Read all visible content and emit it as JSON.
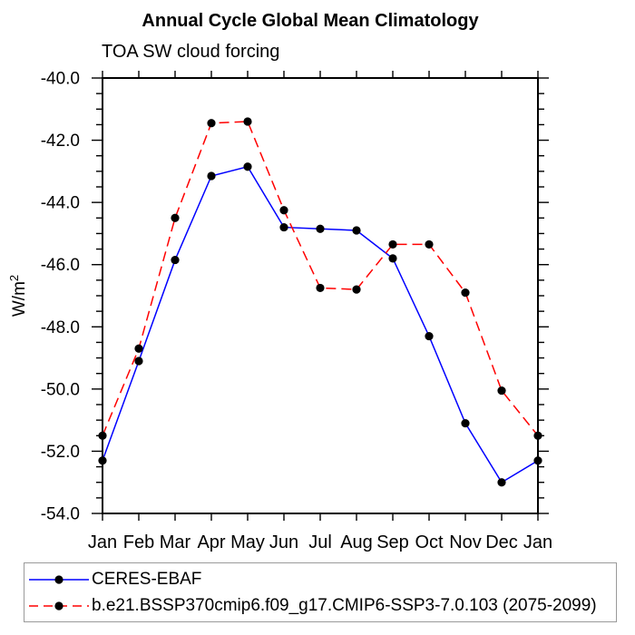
{
  "figure": {
    "title": "Annual Cycle Global Mean Climatology",
    "subtitle": "TOA SW cloud forcing",
    "y_axis_title": "W/m",
    "y_axis_title_exponent": "2"
  },
  "chart_data": {
    "type": "line",
    "title": "Annual Cycle Global Mean Climatology",
    "subtitle": "TOA SW cloud forcing",
    "ylabel": "W/m2",
    "xlabel": "",
    "categories": [
      "Jan",
      "Feb",
      "Mar",
      "Apr",
      "May",
      "Jun",
      "Jul",
      "Aug",
      "Sep",
      "Oct",
      "Nov",
      "Dec",
      "Jan"
    ],
    "series": [
      {
        "name": "CERES-EBAF",
        "color": "#0000ff",
        "line_style": "solid",
        "marker": "circle",
        "marker_color": "#000000",
        "values": [
          -52.3,
          -49.1,
          -45.85,
          -43.15,
          -42.85,
          -44.8,
          -44.85,
          -44.9,
          -45.8,
          -48.3,
          -51.1,
          -53.0,
          -52.3
        ]
      },
      {
        "name": "b.e21.BSSP370cmip6.f09_g17.CMIP6-SSP3-7.0.103 (2075-2099)",
        "color": "#ff0000",
        "line_style": "dashed",
        "marker": "circle",
        "marker_color": "#000000",
        "values": [
          -51.5,
          -48.7,
          -44.5,
          -41.45,
          -41.4,
          -44.25,
          -46.75,
          -46.8,
          -45.35,
          -45.35,
          -46.9,
          -50.05,
          -51.5
        ]
      }
    ],
    "ylim": [
      -54.0,
      -40.0
    ],
    "yticks": [
      "-40.0",
      "-42.0",
      "-44.0",
      "-46.0",
      "-48.0",
      "-50.0",
      "-52.0",
      "-54.0"
    ],
    "ytick_minor_interval": 0.5,
    "grid": false,
    "legend_position": "bottom-left-box",
    "axis_color": "#000000"
  }
}
